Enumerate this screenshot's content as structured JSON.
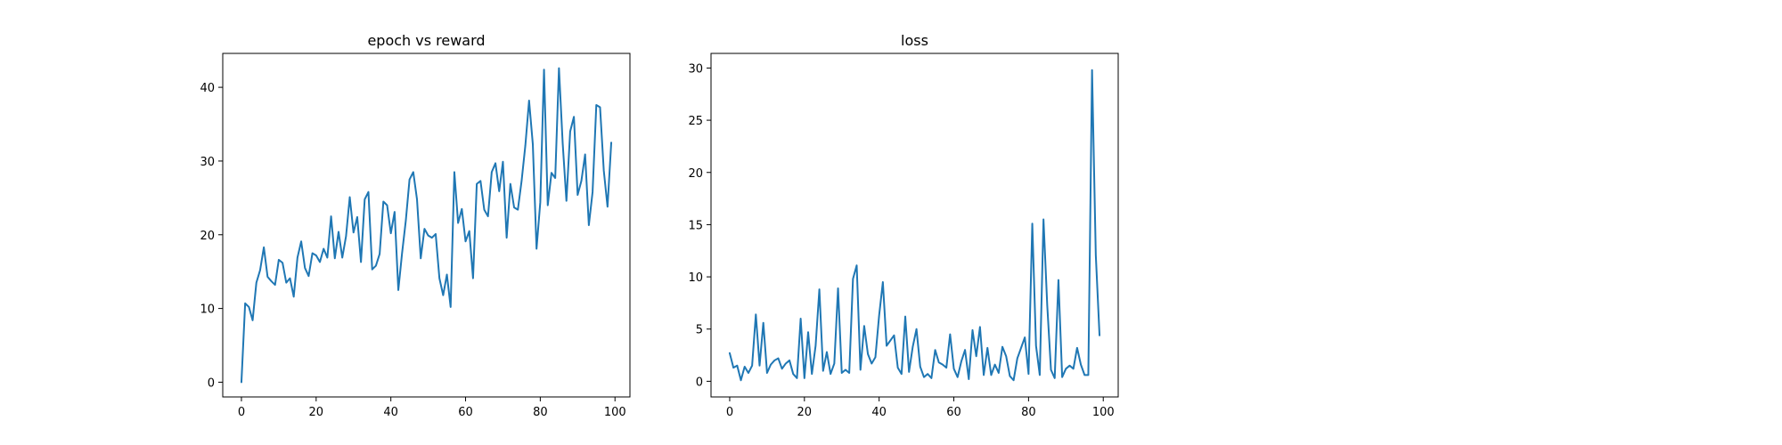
{
  "chart_data": [
    {
      "type": "line",
      "title": "epoch vs reward",
      "xlabel": "",
      "ylabel": "",
      "xlim": [
        -5,
        104
      ],
      "ylim": [
        -2,
        44.6
      ],
      "xticks": [
        0,
        20,
        40,
        60,
        80,
        100
      ],
      "yticks": [
        0,
        10,
        20,
        30,
        40
      ],
      "xtick_labels": [
        "0",
        "20",
        "40",
        "60",
        "80",
        "100"
      ],
      "ytick_labels": [
        "0",
        "10",
        "20",
        "30",
        "40"
      ],
      "grid": false,
      "color": "#1f77b4",
      "series": [
        {
          "x": [
            0,
            1,
            2,
            3,
            4,
            5,
            6,
            7,
            8,
            9,
            10,
            11,
            12,
            13,
            14,
            15,
            16,
            17,
            18,
            19,
            20,
            21,
            22,
            23,
            24,
            25,
            26,
            27,
            28,
            29,
            30,
            31,
            32,
            33,
            34,
            35,
            36,
            37,
            38,
            39,
            40,
            41,
            42,
            43,
            44,
            45,
            46,
            47,
            48,
            49,
            50,
            51,
            52,
            53,
            54,
            55,
            56,
            57,
            58,
            59,
            60,
            61,
            62,
            63,
            64,
            65,
            66,
            67,
            68,
            69,
            70,
            71,
            72,
            73,
            74,
            75,
            76,
            77,
            78,
            79,
            80,
            81,
            82,
            83,
            84,
            85,
            86,
            87,
            88,
            89,
            90,
            91,
            92,
            93,
            94,
            95,
            96,
            97,
            98,
            99
          ],
          "values": [
            0.0,
            10.7,
            10.2,
            8.4,
            13.5,
            15.2,
            18.3,
            14.3,
            13.7,
            13.2,
            16.6,
            16.2,
            13.5,
            14.1,
            11.6,
            16.9,
            19.1,
            15.5,
            14.4,
            17.5,
            17.2,
            16.3,
            18.1,
            16.9,
            22.5,
            16.8,
            20.4,
            16.9,
            19.8,
            25.1,
            20.3,
            22.4,
            16.3,
            24.8,
            25.8,
            15.3,
            15.8,
            17.4,
            24.5,
            24.0,
            20.2,
            23.1,
            12.5,
            17.5,
            21.9,
            27.5,
            28.5,
            24.8,
            16.8,
            20.8,
            19.9,
            19.6,
            20.1,
            14.1,
            11.8,
            14.6,
            10.2,
            28.5,
            21.6,
            23.5,
            19.1,
            20.5,
            14.1,
            26.9,
            27.3,
            23.4,
            22.5,
            28.5,
            29.7,
            25.9,
            29.9,
            19.6,
            26.9,
            23.7,
            23.4,
            27.3,
            32.1,
            38.2,
            32.3,
            18.1,
            24.4,
            42.4,
            24.0,
            28.4,
            27.7,
            42.6,
            32.4,
            24.6,
            34.0,
            36.0,
            25.4,
            27.3,
            30.9,
            21.3,
            25.8,
            37.6,
            37.3,
            28.7,
            23.8,
            32.5
          ]
        }
      ]
    },
    {
      "type": "line",
      "title": "loss",
      "xlabel": "",
      "ylabel": "",
      "xlim": [
        -5,
        104
      ],
      "ylim": [
        -1.5,
        31.4
      ],
      "xticks": [
        0,
        20,
        40,
        60,
        80,
        100
      ],
      "yticks": [
        0,
        5,
        10,
        15,
        20,
        25,
        30
      ],
      "xtick_labels": [
        "0",
        "20",
        "40",
        "60",
        "80",
        "100"
      ],
      "ytick_labels": [
        "0",
        "5",
        "10",
        "15",
        "20",
        "25",
        "30"
      ],
      "grid": false,
      "color": "#1f77b4",
      "series": [
        {
          "x": [
            0,
            1,
            2,
            3,
            4,
            5,
            6,
            7,
            8,
            9,
            10,
            11,
            12,
            13,
            14,
            15,
            16,
            17,
            18,
            19,
            20,
            21,
            22,
            23,
            24,
            25,
            26,
            27,
            28,
            29,
            30,
            31,
            32,
            33,
            34,
            35,
            36,
            37,
            38,
            39,
            40,
            41,
            42,
            43,
            44,
            45,
            46,
            47,
            48,
            49,
            50,
            51,
            52,
            53,
            54,
            55,
            56,
            57,
            58,
            59,
            60,
            61,
            62,
            63,
            64,
            65,
            66,
            67,
            68,
            69,
            70,
            71,
            72,
            73,
            74,
            75,
            76,
            77,
            78,
            79,
            80,
            81,
            82,
            83,
            84,
            85,
            86,
            87,
            88,
            89,
            90,
            91,
            92,
            93,
            94,
            95,
            96,
            97,
            98,
            99
          ],
          "values": [
            2.7,
            1.3,
            1.5,
            0.1,
            1.4,
            0.8,
            1.5,
            6.4,
            1.5,
            5.6,
            0.8,
            1.6,
            2.0,
            2.2,
            1.2,
            1.7,
            2.0,
            0.7,
            0.3,
            6.0,
            0.3,
            4.7,
            0.7,
            3.4,
            8.8,
            1.0,
            2.8,
            0.7,
            1.7,
            8.9,
            0.8,
            1.1,
            0.8,
            9.8,
            11.1,
            1.1,
            5.3,
            2.6,
            1.7,
            2.3,
            6.3,
            9.5,
            3.4,
            3.9,
            4.4,
            1.3,
            0.7,
            6.2,
            0.9,
            3.3,
            5.0,
            1.4,
            0.4,
            0.7,
            0.3,
            3.0,
            1.8,
            1.6,
            1.3,
            4.5,
            1.2,
            0.4,
            1.9,
            3.0,
            0.2,
            4.9,
            2.4,
            5.2,
            0.6,
            3.2,
            0.6,
            1.6,
            0.8,
            3.3,
            2.4,
            0.5,
            0.1,
            2.2,
            3.2,
            4.2,
            0.7,
            15.1,
            3.4,
            0.6,
            15.5,
            7.3,
            1.1,
            0.3,
            9.7,
            0.4,
            1.2,
            1.5,
            1.2,
            3.2,
            1.6,
            0.6,
            0.6,
            29.8,
            12.1,
            4.4
          ]
        }
      ]
    }
  ]
}
